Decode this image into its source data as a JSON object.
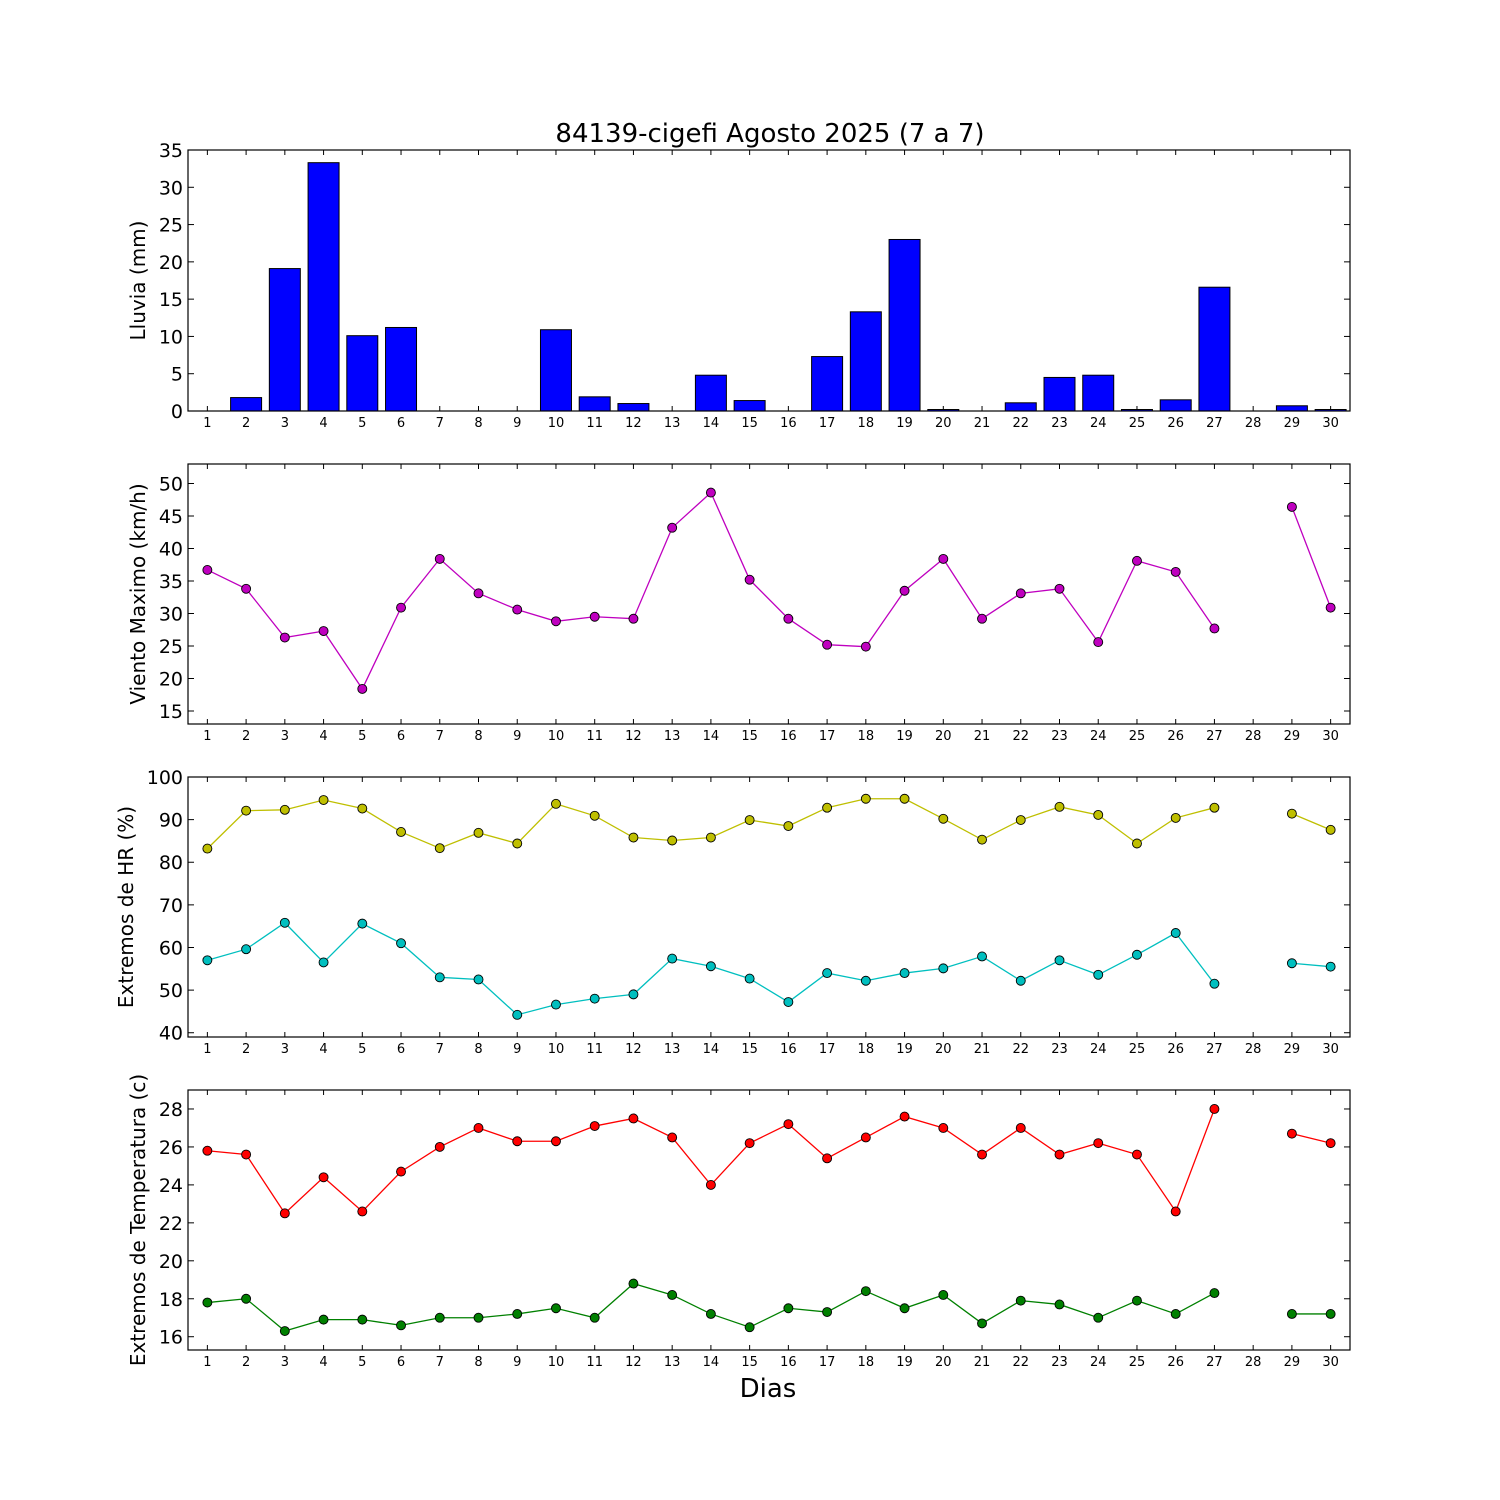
{
  "title": "84139-cigefi Agosto 2025  (7 a 7)",
  "xlabel": "Dias",
  "days": [
    1,
    2,
    3,
    4,
    5,
    6,
    7,
    8,
    9,
    10,
    11,
    12,
    13,
    14,
    15,
    16,
    17,
    18,
    19,
    20,
    21,
    22,
    23,
    24,
    25,
    26,
    27,
    28,
    29,
    30
  ],
  "chart_data": [
    {
      "type": "bar",
      "ylabel": "Lluvia (mm)",
      "ylim": [
        0,
        35
      ],
      "yticks": [
        0,
        5,
        10,
        15,
        20,
        25,
        30,
        35
      ],
      "color": "#0000ff",
      "categories": [
        1,
        2,
        3,
        4,
        5,
        6,
        7,
        8,
        9,
        10,
        11,
        12,
        13,
        14,
        15,
        16,
        17,
        18,
        19,
        20,
        21,
        22,
        23,
        24,
        25,
        26,
        27,
        28,
        29,
        30
      ],
      "values": [
        0,
        1.8,
        19.1,
        33.3,
        10.1,
        11.2,
        0,
        0,
        0,
        10.9,
        1.9,
        1.0,
        0,
        4.8,
        1.4,
        0,
        7.3,
        13.3,
        23.0,
        0.2,
        0,
        1.1,
        4.5,
        4.8,
        0.2,
        1.5,
        16.6,
        0,
        0.7,
        0.2
      ]
    },
    {
      "type": "line",
      "ylabel": "Viento Maximo (km/h)",
      "ylim": [
        13,
        53
      ],
      "yticks": [
        15,
        20,
        25,
        30,
        35,
        40,
        45,
        50
      ],
      "series": [
        {
          "color": "#bf00bf",
          "values": [
            36.7,
            33.8,
            26.3,
            27.3,
            18.4,
            30.9,
            38.4,
            33.1,
            30.6,
            28.8,
            29.5,
            29.2,
            43.2,
            48.6,
            35.2,
            29.2,
            25.2,
            24.9,
            33.5,
            38.4,
            29.2,
            33.1,
            33.8,
            25.6,
            38.1,
            36.4,
            27.7,
            null,
            46.4,
            30.9
          ]
        }
      ]
    },
    {
      "type": "line",
      "ylabel": "Extremos de HR (%)",
      "ylim": [
        39,
        100
      ],
      "yticks": [
        40,
        50,
        60,
        70,
        80,
        90,
        100
      ],
      "series": [
        {
          "color": "#bfbf00",
          "values": [
            83.2,
            92.1,
            92.3,
            94.6,
            92.6,
            87.1,
            83.3,
            86.9,
            84.4,
            93.7,
            90.9,
            85.8,
            85.1,
            85.8,
            89.9,
            88.5,
            92.8,
            94.9,
            94.9,
            90.2,
            85.3,
            89.9,
            93.0,
            91.1,
            84.4,
            90.4,
            92.8,
            null,
            91.4,
            87.6
          ]
        },
        {
          "color": "#00bfbf",
          "values": [
            57.0,
            59.6,
            65.8,
            56.5,
            65.6,
            61.0,
            53.0,
            52.5,
            44.2,
            46.6,
            48.0,
            49.0,
            57.4,
            55.6,
            52.7,
            47.2,
            54.0,
            52.2,
            54.0,
            55.1,
            57.9,
            52.2,
            57.0,
            53.6,
            58.3,
            63.4,
            51.5,
            null,
            56.3,
            55.5
          ]
        }
      ]
    },
    {
      "type": "line",
      "ylabel": "Extremos de Temperatura (c)",
      "ylim": [
        15.3,
        29
      ],
      "yticks": [
        16,
        18,
        20,
        22,
        24,
        26,
        28
      ],
      "series": [
        {
          "color": "#ff0000",
          "values": [
            25.8,
            25.6,
            22.5,
            24.4,
            22.6,
            24.7,
            26.0,
            27.0,
            26.3,
            26.3,
            27.1,
            27.5,
            26.5,
            24.0,
            26.2,
            27.2,
            25.4,
            26.5,
            27.6,
            27.0,
            25.6,
            27.0,
            25.6,
            26.2,
            25.6,
            22.6,
            28.0,
            null,
            26.7,
            26.2
          ]
        },
        {
          "color": "#008000",
          "values": [
            17.8,
            18.0,
            16.3,
            16.9,
            16.9,
            16.6,
            17.0,
            17.0,
            17.2,
            17.5,
            17.0,
            18.8,
            18.2,
            17.2,
            16.5,
            17.5,
            17.3,
            18.4,
            17.5,
            18.2,
            16.7,
            17.9,
            17.7,
            17.0,
            17.9,
            17.2,
            18.3,
            null,
            17.2,
            17.2
          ]
        }
      ]
    }
  ]
}
